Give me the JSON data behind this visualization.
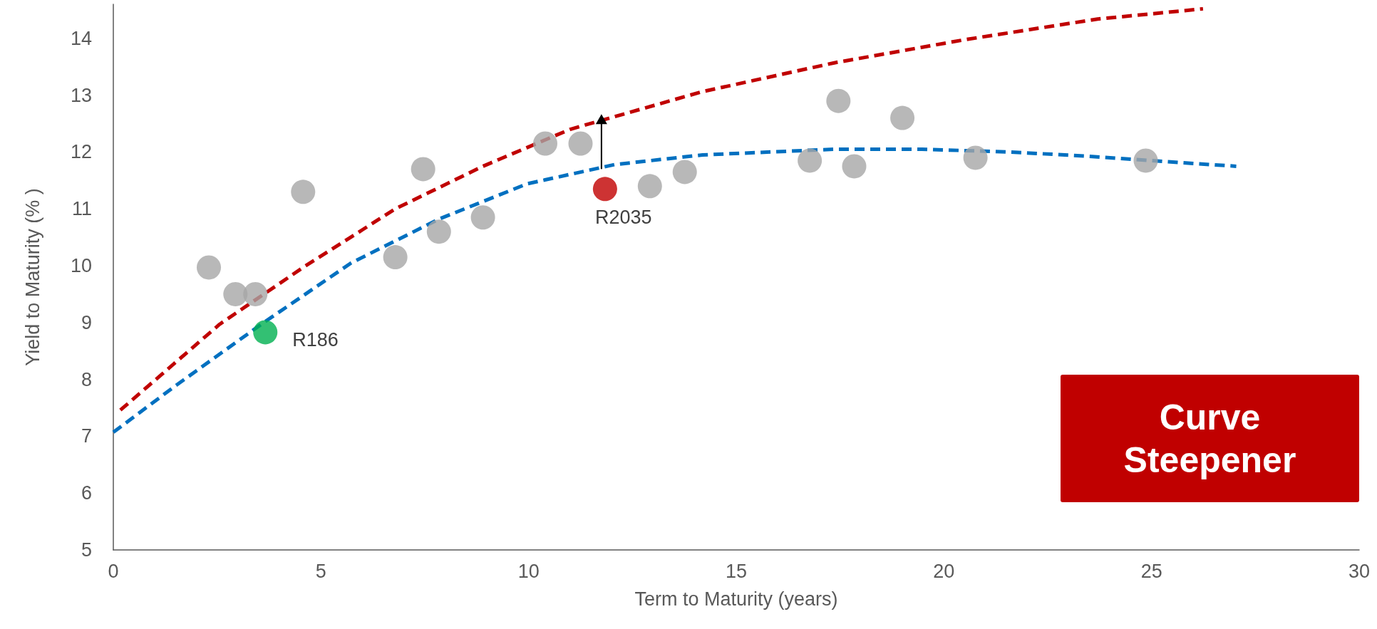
{
  "chart_data": {
    "type": "scatter",
    "xlabel": "Term to Maturity (years)",
    "ylabel": "Yield to Maturity (% )",
    "xlim": [
      0,
      30
    ],
    "xticks": [
      0,
      5,
      10,
      15,
      20,
      25,
      30
    ],
    "ylim": [
      5,
      14.6
    ],
    "yticks": [
      5,
      6,
      7,
      8,
      9,
      10,
      11,
      12,
      13,
      14
    ],
    "grid": false,
    "marker": "circle",
    "series": [
      {
        "color": "#a6a6a6",
        "x": [
          2.3,
          2.94,
          3.42,
          4.57,
          6.79,
          7.46,
          7.84,
          8.9,
          10.4,
          11.25,
          12.92,
          13.76,
          16.77,
          17.46,
          17.84,
          19.0,
          20.76,
          24.86
        ],
        "values": [
          9.97,
          9.5,
          9.5,
          11.3,
          10.15,
          11.7,
          10.6,
          10.85,
          12.15,
          12.15,
          11.4,
          11.65,
          11.85,
          12.9,
          11.75,
          12.6,
          11.9,
          11.85
        ]
      },
      {
        "type": "line",
        "color": "#c00000",
        "marker": "none",
        "line_style": "dashed",
        "x": [
          0.17,
          2.56,
          4.57,
          6.79,
          8.9,
          11.0,
          14.17,
          17.36,
          20.53,
          23.7,
          26.24
        ],
        "values": [
          7.46,
          8.97,
          9.97,
          11.0,
          11.75,
          12.4,
          13.06,
          13.57,
          13.98,
          14.34,
          14.52
        ]
      },
      {
        "type": "line",
        "color": "#0070c0",
        "marker": "none",
        "line_style": "dashed",
        "x": [
          0,
          1.5,
          3.62,
          5.73,
          7.84,
          9.96,
          12.07,
          14.19,
          17.36,
          19.47,
          21.6,
          23.4,
          26.0,
          27.04
        ],
        "values": [
          7.07,
          7.89,
          9.0,
          10.05,
          10.82,
          11.44,
          11.78,
          11.95,
          12.05,
          12.05,
          12.0,
          11.93,
          11.8,
          11.75
        ]
      },
      {
        "color": "#00b050",
        "x": [
          3.66
        ],
        "values": [
          8.83
        ]
      },
      {
        "color": "#c00000",
        "x": [
          11.84
        ],
        "values": [
          11.35
        ]
      }
    ],
    "annotations": [
      "Curve Steepener",
      {
        "text": "R186",
        "x": 3.66,
        "y": 8.83
      },
      {
        "text": "R2035",
        "x": 11.84,
        "y": 11.35
      }
    ]
  }
}
